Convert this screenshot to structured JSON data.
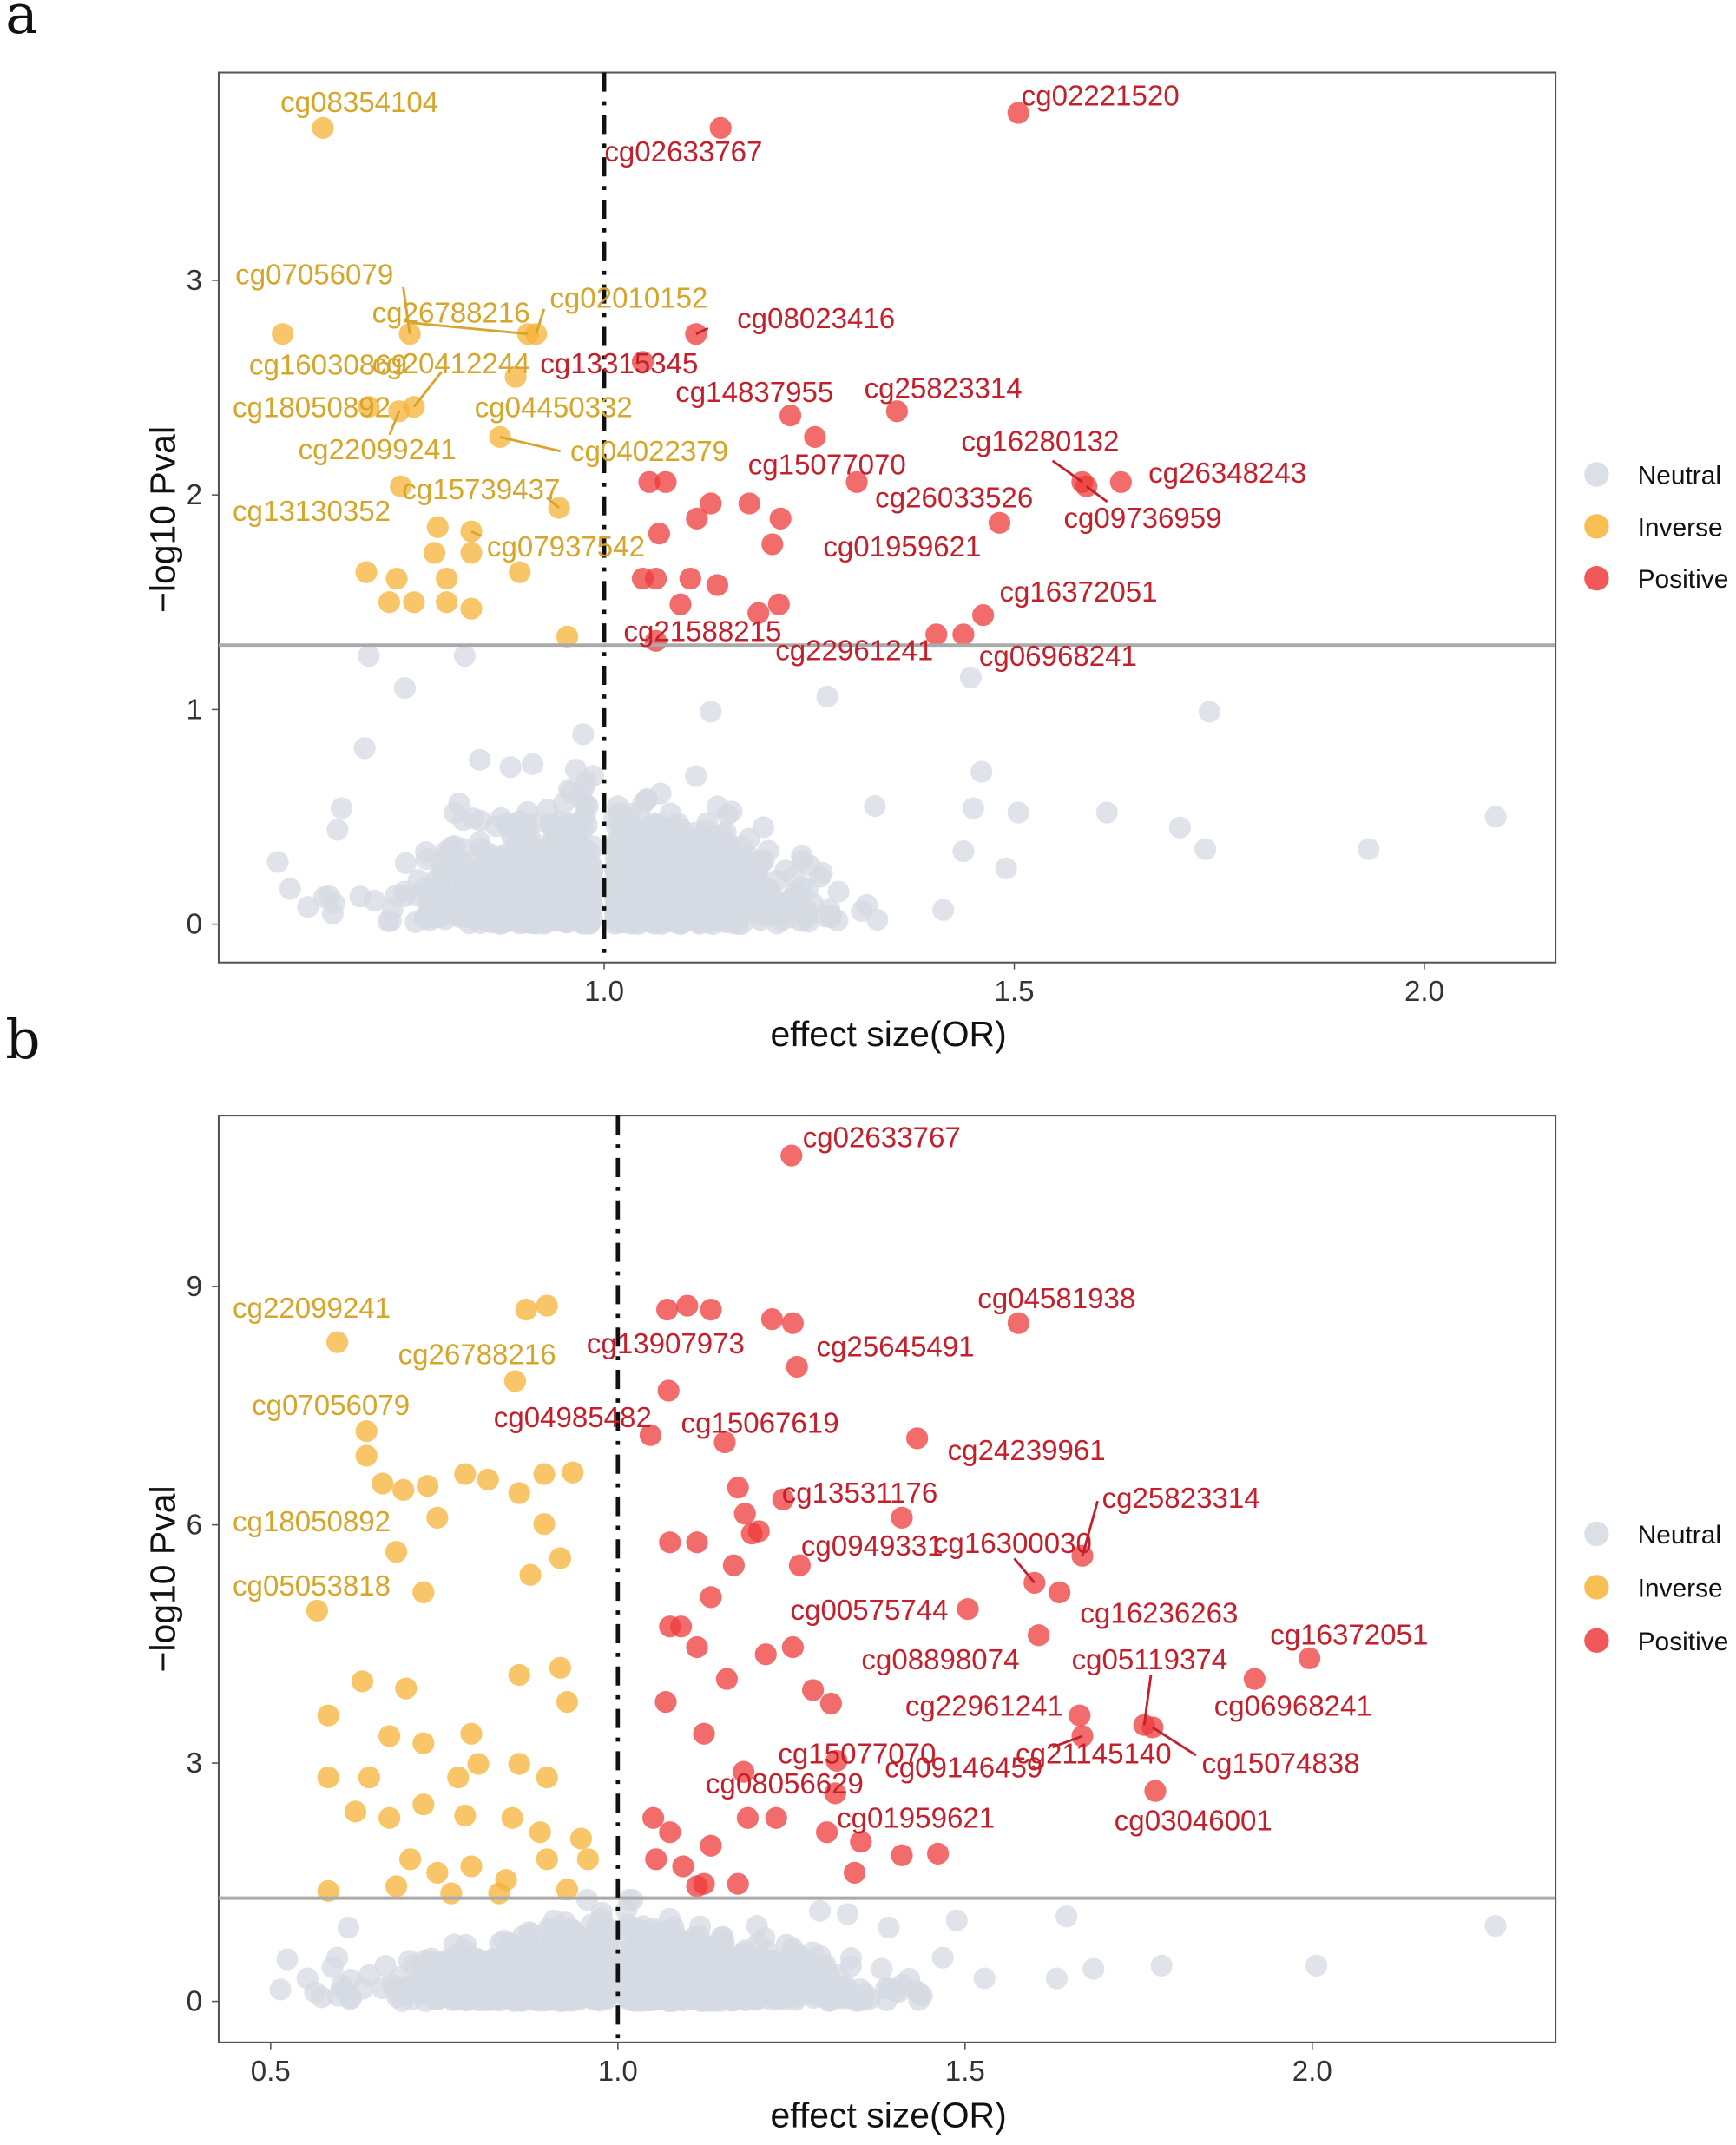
{
  "colors": {
    "neutral": "#d5d9e2",
    "inverse": "#f5b335",
    "positive": "#ee3b3b",
    "inverse_label": "#d6a52a",
    "positive_label": "#c4202c"
  },
  "chart_data": [
    {
      "panel": "a",
      "type": "scatter",
      "title": "",
      "xlabel": "effect size(OR)",
      "ylabel": "−log10 Pval",
      "xlim": [
        0.53,
        2.16
      ],
      "ylim": [
        -0.18,
        3.97
      ],
      "xticks": [
        "1.0",
        "1.5",
        "2.0"
      ],
      "xtick_values": [
        1.0,
        1.5,
        2.0
      ],
      "yticks": [
        "0",
        "1",
        "2",
        "3"
      ],
      "ytick_values": [
        0,
        1,
        2,
        3
      ],
      "reference_lines": {
        "vertical_x": 1.0,
        "horizontal_y": 1.3
      },
      "grid": false,
      "legend": {
        "placement": "right",
        "entries": [
          "Neutral",
          "Inverse",
          "Positive"
        ]
      },
      "labeled_points": [
        {
          "label": "cg08354104",
          "x": 0.657,
          "y": 3.71,
          "group": "inverse"
        },
        {
          "label": "cg02633767",
          "x": 1.142,
          "y": 3.71,
          "group": "positive"
        },
        {
          "label": "cg02221520",
          "x": 1.505,
          "y": 3.78,
          "group": "positive"
        },
        {
          "label": "cg07056079",
          "x": 0.763,
          "y": 2.75,
          "group": "inverse"
        },
        {
          "label": "cg26788216",
          "x": 0.907,
          "y": 2.75,
          "group": "inverse"
        },
        {
          "label": "cg02010152",
          "x": 0.917,
          "y": 2.75,
          "group": "inverse"
        },
        {
          "label": "cg08023416",
          "x": 1.112,
          "y": 2.75,
          "group": "positive"
        },
        {
          "label": "cg16030869",
          "x": 0.608,
          "y": 2.75,
          "group": "inverse"
        },
        {
          "label": "cg20412244",
          "x": 0.768,
          "y": 2.41,
          "group": "inverse"
        },
        {
          "label": "cg13315345",
          "x": 1.047,
          "y": 2.62,
          "group": "positive"
        },
        {
          "label": "cg18050892",
          "x": 0.713,
          "y": 2.41,
          "group": "inverse"
        },
        {
          "label": "cg04450332",
          "x": 0.892,
          "y": 2.55,
          "group": "inverse"
        },
        {
          "label": "cg14837955",
          "x": 1.227,
          "y": 2.37,
          "group": "positive"
        },
        {
          "label": "cg25823314",
          "x": 1.357,
          "y": 2.39,
          "group": "positive"
        },
        {
          "label": "cg22099241",
          "x": 0.75,
          "y": 2.39,
          "group": "inverse"
        },
        {
          "label": "cg04022379",
          "x": 0.873,
          "y": 2.27,
          "group": "inverse"
        },
        {
          "label": "cg15077070",
          "x": 1.257,
          "y": 2.27,
          "group": "positive"
        },
        {
          "label": "cg16280132",
          "x": 1.583,
          "y": 2.06,
          "group": "positive"
        },
        {
          "label": "cg26348243",
          "x": 1.63,
          "y": 2.06,
          "group": "positive"
        },
        {
          "label": "cg26033526",
          "x": 1.308,
          "y": 2.06,
          "group": "positive"
        },
        {
          "label": "cg09736959",
          "x": 1.588,
          "y": 2.04,
          "group": "positive"
        },
        {
          "label": "cg15739437",
          "x": 0.945,
          "y": 1.94,
          "group": "inverse"
        },
        {
          "label": "cg13130352",
          "x": 0.752,
          "y": 2.04,
          "group": "inverse"
        },
        {
          "label": "cg07937542",
          "x": 0.838,
          "y": 1.83,
          "group": "inverse"
        },
        {
          "label": "cg01959621",
          "x": 1.482,
          "y": 1.87,
          "group": "positive"
        },
        {
          "label": "cg16372051",
          "x": 1.462,
          "y": 1.44,
          "group": "positive"
        },
        {
          "label": "cg21588215",
          "x": 1.063,
          "y": 1.32,
          "group": "positive"
        },
        {
          "label": "cg22961241",
          "x": 1.405,
          "y": 1.35,
          "group": "positive"
        },
        {
          "label": "cg06968241",
          "x": 1.438,
          "y": 1.35,
          "group": "positive"
        }
      ],
      "inverse_points": [
        [
          0.71,
          1.64
        ],
        [
          0.747,
          1.61
        ],
        [
          0.793,
          1.73
        ],
        [
          0.838,
          1.73
        ],
        [
          0.808,
          1.61
        ],
        [
          0.738,
          1.5
        ],
        [
          0.768,
          1.5
        ],
        [
          0.808,
          1.5
        ],
        [
          0.838,
          1.47
        ],
        [
          0.897,
          1.64
        ],
        [
          0.955,
          1.34
        ],
        [
          0.797,
          1.85
        ]
      ],
      "positive_points": [
        [
          1.055,
          2.06
        ],
        [
          1.075,
          2.06
        ],
        [
          1.113,
          1.89
        ],
        [
          1.13,
          1.96
        ],
        [
          1.177,
          1.96
        ],
        [
          1.215,
          1.89
        ],
        [
          1.205,
          1.77
        ],
        [
          1.067,
          1.82
        ],
        [
          1.047,
          1.61
        ],
        [
          1.063,
          1.61
        ],
        [
          1.105,
          1.61
        ],
        [
          1.138,
          1.58
        ],
        [
          1.188,
          1.45
        ],
        [
          1.213,
          1.49
        ],
        [
          1.093,
          1.49
        ]
      ],
      "neutral_points": [
        [
          0.602,
          0.29
        ],
        [
          0.665,
          0.13
        ],
        [
          0.68,
          0.54
        ],
        [
          0.675,
          0.44
        ],
        [
          0.708,
          0.82
        ],
        [
          1.738,
          0.99
        ],
        [
          2.087,
          0.5
        ],
        [
          1.932,
          0.35
        ],
        [
          1.702,
          0.45
        ],
        [
          1.733,
          0.35
        ],
        [
          1.613,
          0.52
        ],
        [
          1.49,
          0.26
        ],
        [
          1.505,
          0.52
        ],
        [
          1.45,
          0.54
        ],
        [
          1.438,
          0.34
        ],
        [
          1.46,
          0.71
        ],
        [
          1.447,
          1.15
        ],
        [
          1.272,
          1.06
        ],
        [
          1.13,
          0.99
        ],
        [
          0.757,
          1.1
        ],
        [
          0.713,
          1.25
        ],
        [
          0.83,
          1.25
        ],
        [
          1.33,
          0.55
        ]
      ]
    },
    {
      "panel": "b",
      "type": "scatter",
      "title": "",
      "xlabel": "effect size(OR)",
      "ylabel": "−log10 Pval",
      "xlim": [
        0.42,
        2.35
      ],
      "ylim": [
        -0.5,
        11.2
      ],
      "xticks": [
        "0.5",
        "1.0",
        "1.5",
        "2.0"
      ],
      "xtick_values": [
        0.5,
        1.0,
        1.5,
        2.0
      ],
      "yticks": [
        "0",
        "3",
        "6",
        "9"
      ],
      "ytick_values": [
        0,
        3,
        6,
        9
      ],
      "reference_lines": {
        "vertical_x": 1.0,
        "horizontal_y": 1.3
      },
      "grid": false,
      "legend": {
        "placement": "right",
        "entries": [
          "Neutral",
          "Inverse",
          "Positive"
        ]
      },
      "labeled_points": [
        {
          "label": "cg02633767",
          "x": 1.25,
          "y": 10.65,
          "group": "positive"
        },
        {
          "label": "cg22099241",
          "x": 0.596,
          "y": 8.3,
          "group": "inverse"
        },
        {
          "label": "cg26788216",
          "x": 0.852,
          "y": 7.81,
          "group": "inverse"
        },
        {
          "label": "cg13907973",
          "x": 1.073,
          "y": 7.69,
          "group": "positive"
        },
        {
          "label": "cg25645491",
          "x": 1.258,
          "y": 7.99,
          "group": "positive"
        },
        {
          "label": "cg04581938",
          "x": 1.577,
          "y": 8.54,
          "group": "positive"
        },
        {
          "label": "cg07056079",
          "x": 0.638,
          "y": 7.18,
          "group": "inverse"
        },
        {
          "label": "cg04985482",
          "x": 1.047,
          "y": 7.13,
          "group": "positive"
        },
        {
          "label": "cg15067619",
          "x": 1.154,
          "y": 7.04,
          "group": "positive"
        },
        {
          "label": "cg24239961",
          "x": 1.431,
          "y": 7.09,
          "group": "positive"
        },
        {
          "label": "cg13531176",
          "x": 1.238,
          "y": 6.32,
          "group": "positive"
        },
        {
          "label": "cg18050892",
          "x": 0.681,
          "y": 5.66,
          "group": "inverse"
        },
        {
          "label": "cg25823314",
          "x": 1.669,
          "y": 5.61,
          "group": "positive"
        },
        {
          "label": "cg0949331",
          "x": 1.409,
          "y": 6.09,
          "group": "positive"
        },
        {
          "label": "cg16300030",
          "x": 1.6,
          "y": 5.27,
          "group": "positive"
        },
        {
          "label": "cg05053818",
          "x": 0.567,
          "y": 4.92,
          "group": "inverse"
        },
        {
          "label": "cg16236263",
          "x": 1.636,
          "y": 5.15,
          "group": "positive"
        },
        {
          "label": "cg00575744",
          "x": 1.504,
          "y": 4.94,
          "group": "positive"
        },
        {
          "label": "cg16372051",
          "x": 1.996,
          "y": 4.32,
          "group": "positive"
        },
        {
          "label": "cg08898074",
          "x": 1.606,
          "y": 4.61,
          "group": "positive"
        },
        {
          "label": "cg05119374",
          "x": 1.758,
          "y": 3.48,
          "group": "positive"
        },
        {
          "label": "cg06968241",
          "x": 1.917,
          "y": 4.06,
          "group": "positive"
        },
        {
          "label": "cg22961241",
          "x": 1.665,
          "y": 3.6,
          "group": "positive"
        },
        {
          "label": "cg15074838",
          "x": 1.77,
          "y": 3.45,
          "group": "positive"
        },
        {
          "label": "cg21145140",
          "x": 1.669,
          "y": 3.34,
          "group": "positive"
        },
        {
          "label": "cg15077070",
          "x": 1.315,
          "y": 3.03,
          "group": "positive"
        },
        {
          "label": "cg09146459",
          "x": 1.313,
          "y": 2.62,
          "group": "positive"
        },
        {
          "label": "cg08056629",
          "x": 1.181,
          "y": 2.89,
          "group": "positive"
        },
        {
          "label": "cg01959621",
          "x": 1.301,
          "y": 2.13,
          "group": "positive"
        },
        {
          "label": "cg03046001",
          "x": 1.774,
          "y": 2.65,
          "group": "positive"
        }
      ],
      "inverse_points": [
        [
          0.868,
          8.71
        ],
        [
          0.898,
          8.76
        ],
        [
          0.638,
          6.87
        ],
        [
          0.661,
          6.52
        ],
        [
          0.691,
          6.44
        ],
        [
          0.726,
          6.49
        ],
        [
          0.78,
          6.64
        ],
        [
          0.813,
          6.57
        ],
        [
          0.858,
          6.4
        ],
        [
          0.894,
          6.64
        ],
        [
          0.935,
          6.66
        ],
        [
          0.74,
          6.09
        ],
        [
          0.894,
          6.01
        ],
        [
          0.917,
          5.58
        ],
        [
          0.874,
          5.37
        ],
        [
          0.72,
          5.15
        ],
        [
          0.632,
          4.03
        ],
        [
          0.583,
          3.6
        ],
        [
          0.695,
          3.94
        ],
        [
          0.858,
          4.11
        ],
        [
          0.917,
          4.2
        ],
        [
          0.927,
          3.77
        ],
        [
          0.671,
          3.34
        ],
        [
          0.72,
          3.25
        ],
        [
          0.789,
          3.37
        ],
        [
          0.858,
          2.99
        ],
        [
          0.898,
          2.82
        ],
        [
          0.622,
          2.39
        ],
        [
          0.671,
          2.31
        ],
        [
          0.72,
          2.48
        ],
        [
          0.78,
          2.34
        ],
        [
          0.848,
          2.31
        ],
        [
          0.888,
          2.13
        ],
        [
          0.947,
          2.05
        ],
        [
          0.583,
          2.82
        ],
        [
          0.701,
          1.79
        ],
        [
          0.74,
          1.62
        ],
        [
          0.789,
          1.7
        ],
        [
          0.839,
          1.53
        ],
        [
          0.898,
          1.79
        ],
        [
          0.957,
          1.79
        ],
        [
          0.583,
          1.39
        ],
        [
          0.681,
          1.45
        ],
        [
          0.76,
          1.36
        ],
        [
          0.829,
          1.36
        ],
        [
          0.927,
          1.41
        ],
        [
          0.77,
          2.82
        ],
        [
          0.799,
          2.99
        ],
        [
          0.642,
          2.82
        ]
      ],
      "positive_points": [
        [
          1.071,
          8.71
        ],
        [
          1.1,
          8.76
        ],
        [
          1.134,
          8.71
        ],
        [
          1.222,
          8.59
        ],
        [
          1.252,
          8.54
        ],
        [
          1.075,
          5.78
        ],
        [
          1.114,
          5.78
        ],
        [
          1.167,
          5.49
        ],
        [
          1.193,
          5.89
        ],
        [
          1.134,
          5.09
        ],
        [
          1.075,
          4.72
        ],
        [
          1.091,
          4.72
        ],
        [
          1.114,
          4.46
        ],
        [
          1.157,
          4.06
        ],
        [
          1.213,
          4.37
        ],
        [
          1.252,
          4.46
        ],
        [
          1.281,
          3.92
        ],
        [
          1.307,
          3.75
        ],
        [
          1.069,
          3.77
        ],
        [
          1.124,
          3.37
        ],
        [
          1.051,
          2.31
        ],
        [
          1.075,
          2.13
        ],
        [
          1.134,
          1.96
        ],
        [
          1.187,
          2.31
        ],
        [
          1.228,
          2.31
        ],
        [
          1.055,
          1.79
        ],
        [
          1.094,
          1.7
        ],
        [
          1.124,
          1.48
        ],
        [
          1.173,
          1.48
        ],
        [
          1.35,
          2.01
        ],
        [
          1.409,
          1.84
        ],
        [
          1.461,
          1.86
        ],
        [
          1.341,
          1.62
        ],
        [
          1.183,
          6.14
        ],
        [
          1.262,
          5.49
        ],
        [
          1.114,
          1.45
        ],
        [
          1.173,
          6.47
        ],
        [
          1.203,
          5.92
        ]
      ],
      "neutral_points": [
        [
          0.514,
          0.15
        ],
        [
          0.524,
          0.53
        ],
        [
          0.553,
          0.29
        ],
        [
          0.596,
          0.55
        ],
        [
          0.642,
          0.33
        ],
        [
          2.264,
          0.95
        ],
        [
          2.006,
          0.45
        ],
        [
          1.646,
          1.07
        ],
        [
          1.632,
          0.29
        ],
        [
          1.685,
          0.41
        ],
        [
          1.783,
          0.45
        ],
        [
          1.528,
          0.29
        ],
        [
          1.468,
          0.55
        ],
        [
          1.39,
          0.93
        ],
        [
          1.488,
          1.02
        ],
        [
          1.331,
          1.1
        ],
        [
          1.38,
          0.41
        ],
        [
          1.291,
          1.14
        ],
        [
          0.612,
          0.93
        ]
      ]
    }
  ]
}
